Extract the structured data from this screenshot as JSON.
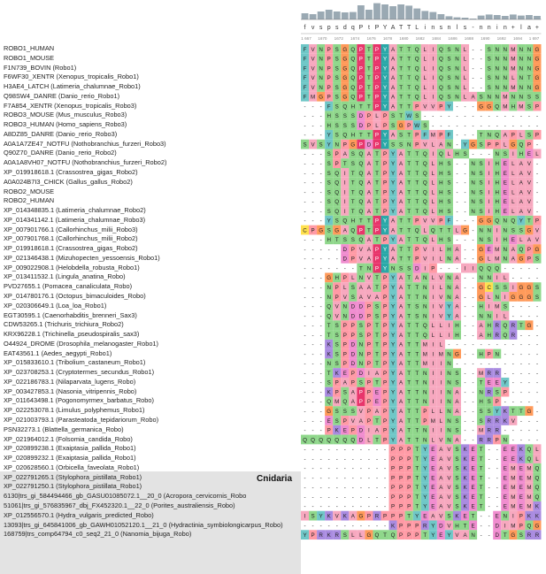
{
  "group_label": "Cnidaria",
  "consensus": [
    "f",
    "v",
    "s",
    "p",
    "s",
    "d",
    "q",
    "P",
    "t",
    "P",
    "Y",
    "A",
    "T",
    "T",
    "L",
    "i",
    "n",
    "s",
    "n",
    "l",
    "s",
    "-",
    "n",
    "n",
    "i",
    "n",
    "+",
    "l",
    "a",
    "+"
  ],
  "conservation": [
    0.35,
    0.3,
    0.45,
    0.55,
    0.45,
    0.4,
    0.42,
    0.8,
    0.55,
    0.92,
    0.85,
    0.75,
    0.85,
    0.78,
    0.62,
    0.48,
    0.42,
    0.3,
    0.18,
    0.12,
    0.1,
    0.05,
    0.22,
    0.28,
    0.25,
    0.2,
    0.28,
    0.22,
    0.25,
    0.2
  ],
  "position_ticks": [
    "1 667",
    "1670",
    "1672",
    "1674",
    "1676",
    "1678",
    "1680",
    "1682",
    "1684",
    "1686",
    "1688",
    "1690",
    "1692",
    "1694",
    "1 697"
  ],
  "colors": {
    "hydrophobic": "#f7a8bf",
    "aromatic": "#6fc7c7",
    "polar": "#8fd78b",
    "acidic": "#f08ccf",
    "basic": "#a98be0",
    "cys": "#ffe04d",
    "gly": "#ff9a5a",
    "pro": "#ff9aa5",
    "highlight_pro": "#e8356b",
    "highlight_tyr": "#2aa8a8",
    "gap_bg": "#ffffff"
  },
  "sequences": [
    {
      "name": "ROBO1_HUMAN",
      "seq": "FVNPSGQPTPYATTQLIQSNL--SNNMNNGSC"
    },
    {
      "name": "ROBO1_MOUSE",
      "seq": "FVNPSGQPTPYATTQLIQSNL--SNNMNNGSC"
    },
    {
      "name": "F1N739_BOVIN (Robo1)",
      "seq": "FVNPSGQPTPYATTQLIQSNL--SNNMNNGSC"
    },
    {
      "name": "F6WF30_XENTR (Xenopus_tropicalis_Robo1)",
      "seq": "FVNPSGQPTPYATTQLIQSNL--SNNLNTGSA"
    },
    {
      "name": "H3AE4_LATCH (Latimeria_chalumnae_Robo1)",
      "seq": "FVNPSGQPTPYATTQLIQSNL--SNNMNNGSC"
    },
    {
      "name": "Q98SW4_DANRE (Danio_rerio_Robo1)",
      "seq": "FMGPSGQPTPYATTQLIQSNLASNNMNNSSS"
    },
    {
      "name": "F7A854_XENTR (Xenopus_tropicalis_Robo3)",
      "seq": "---FSQHTTPYATTPVVPY---GGQMHMSP"
    },
    {
      "name": "ROBO3_MOUSE (Mus_musculus_Robo3)",
      "seq": "---HSSSDPLPSTWS-----------------"
    },
    {
      "name": "ROBO3_HUMAN (Homo_sapiens_Robo3)",
      "seq": "---HSSSDPLPSGPWS----------------"
    },
    {
      "name": "A8DZ85_DANRE (Danio_rerio_Robo3)",
      "seq": "---YSQHTTPYASTPFMPF---TNQAPLSP"
    },
    {
      "name": "A0A1A7ZE47_NOTFU (Nothobranchius_furzeri_Robo3)",
      "seq": "SVSYNPGPDPYSSNPVLAN-YGSPPLGQP"
    },
    {
      "name": "Q90Z70_DANRE (Danio_rerio_Robo2)",
      "seq": "---SPASQATPYATTQIQLHS---NSIHELAV"
    },
    {
      "name": "A0A1A8VH07_NOTFU (Nothobranchius_furzeri_Robo2)",
      "seq": "---SPTSQATPYATTQLHS--NSIHELAV"
    },
    {
      "name": "XP_019918618.1 (Crassostrea_gigas_Robo2)",
      "seq": "---SQITQATPYATTQLHS--NSIHELAV"
    },
    {
      "name": "A0A024B7I3_CHICK (Gallus_gallus_Robo2)",
      "seq": "---SQITQATPYATTQLHS--NSIHELAV"
    },
    {
      "name": "ROBO2_MOUSE",
      "seq": "---SQITQATPYATTQLHS--NSIHELAV"
    },
    {
      "name": "ROBO2_HUMAN",
      "seq": "---SQITQATPYATTQLHS--NSIHELAV"
    },
    {
      "name": "XP_014348835.1 (Latimeria_chalumnae_Robo2)",
      "seq": "---SQITQATPYATTQLHS--NSIHELAV"
    },
    {
      "name": "XP_014341142.1 (Latimeria_chalumnae_Robo3)",
      "seq": "---YSQHTTPYATTPVVPF---GGQNQYTP"
    },
    {
      "name": "XP_007901766.1 (Callorhinchus_milii_Robo3)",
      "seq": "CPGSGAQPTPYATTQLQTTLG-NNINSSGV"
    },
    {
      "name": "XP_007901768.1 (Callorhinchus_milii_Robo2)",
      "seq": "---HTSSQATPYATTQLHS---NSIHELAV"
    },
    {
      "name": "XP_019918618.1 (Crassostrea_gigas_Robo2)",
      "seq": "-----DPVAPYATTPVILHA--GEMNAQPG"
    },
    {
      "name": "XP_021346438.1 (Mizuhopecten_yessoensis_Robo1)",
      "seq": "-----DPVAPYATTPVILNA--GLMNAGPS"
    },
    {
      "name": "XP_009022908.1 (Helobdella_robusta_Robo1)",
      "seq": "-------TNPYNSSDIP---IIQQQ-------"
    },
    {
      "name": "XP_013411532.1 (Lingula_anatina_Robo)",
      "seq": "---GHPLNVTPYATANLVNA--NNIL------"
    },
    {
      "name": "PVD27655.1 (Pomacea_canaliculata_Robo)",
      "seq": "---NPLSAATPYATTNILNA--GCSSIGGS"
    },
    {
      "name": "XP_014780176.1 (Octopus_bimaculoides_Robo)",
      "seq": "---NPVSAVAPYATTNIVNA--GLNIGGGS"
    },
    {
      "name": "XP_020306649.1 (Loa_loa_Robo1)",
      "seq": "---QVNDDPSPYATSNIVYA--HIMS-----"
    },
    {
      "name": "EGT30595.1 (Caenorhabditis_brenneri_Sax3)",
      "seq": "---QVNDDPSPYATSNIVYA--NNIL------"
    },
    {
      "name": "CDW53265.1 (Trichuris_trichiura_Robo2)",
      "seq": "---TSPPSPTPYATTQLLIH--AHRQRTG"
    },
    {
      "name": "KRX96228.1 (Trichinella_pseudospiralis_sax3)",
      "seq": "---TSPPSPTPYATTQLLIH--AHRQR---"
    },
    {
      "name": "O44924_DROME (Drosophila_melanogaster_Robo1)",
      "seq": "---KSPDNPTPYATTMIL--------------"
    },
    {
      "name": "EAT43561.1 (Aedes_aegypti_Robo1)",
      "seq": "---KSPDNPTPYATTMIMNG--HPN-------"
    },
    {
      "name": "XP_015833610.1 (Tribolium_castaneum_Robo1)",
      "seq": "---NSPDNPTPYATTMIIN-------------"
    },
    {
      "name": "XP_023708253.1 (Cryptotermes_secundus_Robo1)",
      "seq": "---TKEPDIAPYATTNIINS--MRR-------"
    },
    {
      "name": "XP_022186783.1 (Nilaparvata_lugens_Robo)",
      "seq": "---SPAPSPTPYATTNIINS--TEEY------"
    },
    {
      "name": "XP_003427853.1 (Nasonia_vitripennis_Robo)",
      "seq": "---KPSAPPEPYATTNIINA--NRSP------"
    },
    {
      "name": "XP_011643498.1 (Pogonomyrmex_barbatus_Robo)",
      "seq": "---QMQAPPEPYATTNIINA--HSP-------"
    },
    {
      "name": "XP_022253078.1 (Limulus_polyphemus_Robo1)",
      "seq": "---GSSSVPAPYATTPLLNA--SSYKTTG"
    },
    {
      "name": "XP_021003793.1 (Parasteatoda_tepidariorum_Robo)",
      "seq": "---ESPVAPTPYATTPMLNS--SRRKV---"
    },
    {
      "name": "PSN32273.1 (Blattella_germanica_Robo)",
      "seq": "---PKEPDIAPYATTNIINS--MRR-------"
    },
    {
      "name": "XP_021964012.1 (Folsomia_candida_Robo)",
      "seq": "QQQQQQQDLTPYATTNLVNA--RRPN------"
    },
    {
      "name": "XP_020899238.1 (Exaiptasia_pallida_Robo1)",
      "seq": "-----------PPPTYEAVSKET--EEKQLE"
    },
    {
      "name": "XP_020899232.1 (Exaiptasia_pallida_Robo1)",
      "seq": "-----------PPPTYEAVSKET--EEKQLE"
    },
    {
      "name": "XP_020628560.1 (Orbicella_faveolata_Robo1)",
      "seq": "-----------PPPTYEAVSKET--EMEMQKF"
    },
    {
      "name": "XP_022791265.1 (Stylophora_pistillata_Robo1)",
      "seq": "-----------PPPTYEAVSKET--EMEMQKF"
    },
    {
      "name": "XP_022791250.1 (Stylophora_pistillata_Robo1)",
      "seq": "-----------PPPTYEAVSKET--EMEMQKF"
    },
    {
      "name": "6130|trs_gi_584494466_gb_GASU01085072.1__20_0 (Acropora_cervicornis_Robo",
      "seq": "-----------PPPTYEAVSKET--EMEMQKF"
    },
    {
      "name": "51061|trs_gi_576835967_dbj_FX452320.1__22_0 (Porites_australiensis_Robo)",
      "seq": "-----------PPPTYEAVSKET--EMEMKYY"
    },
    {
      "name": "XP_012556570.1 (Hydra_vulgaris_predicted_Robo)",
      "seq": "ISYKVKAGPRPPPTYEAVSKET--ENIPKKD"
    },
    {
      "name": "13093|trs_gi_645841006_gb_GAWH01052120.1__21_0 (Hydractinia_symbiolongicarpus_Robo)",
      "seq": "-----------KPPPRYDVHTE--DIMPQGE"
    },
    {
      "name": "168759|trs_comp64794_c0_seq2_21_0 (Nanomia_bijuga_Robo)",
      "seq": "YPRKRSLLGQTQPPPTYEYVAN--DTGSRRDT"
    }
  ]
}
